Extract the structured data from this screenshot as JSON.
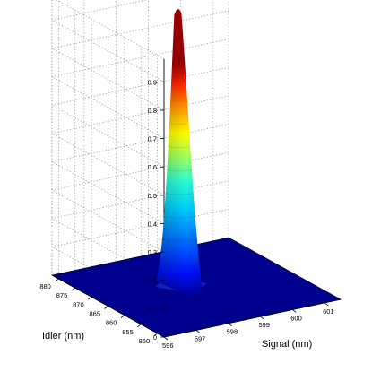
{
  "chart_data": {
    "type": "surface3d",
    "title": "",
    "xlabel": "Signal (nm)",
    "ylabel": "Idler (nm)",
    "zlabel": "",
    "x_ticks": [
      "596",
      "597",
      "598",
      "599",
      "600",
      "601"
    ],
    "y_ticks": [
      "850",
      "855",
      "860",
      "865",
      "870",
      "875",
      "880"
    ],
    "z_ticks": [
      "0",
      "0.1",
      "0.2",
      "0.3",
      "0.4",
      "0.5",
      "0.6",
      "0.7",
      "0.8",
      "0.9"
    ],
    "xlim": [
      596,
      601.5
    ],
    "ylim": [
      848,
      882
    ],
    "zlim": [
      0,
      0.98
    ],
    "peak": {
      "x": 598.4,
      "y": 867.2,
      "z": 0.98
    },
    "floor_color": "#00008f",
    "colormap": "jet",
    "grid": true
  }
}
